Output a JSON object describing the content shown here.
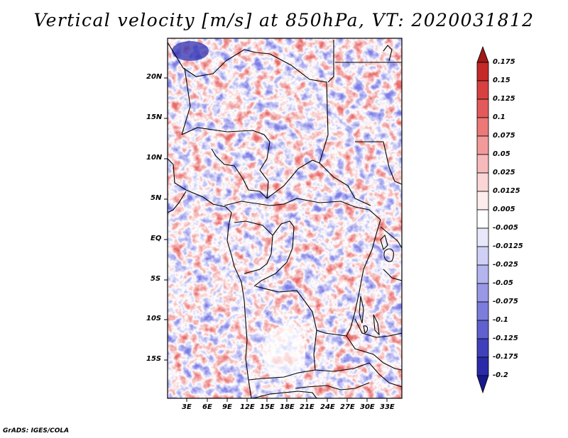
{
  "title": "Vertical velocity [m/s] at 850hPa, VT: 2020031812",
  "footer": "GrADS: IGES/COLA",
  "map": {
    "region": "Central and Southern Africa",
    "lat_labels": [
      "20N",
      "15N",
      "10N",
      "5N",
      "EQ",
      "5S",
      "10S",
      "15S"
    ],
    "lon_labels": [
      "3E",
      "6E",
      "9E",
      "12E",
      "15E",
      "18E",
      "21E",
      "24E",
      "27E",
      "30E",
      "33E"
    ]
  },
  "colorbar": {
    "labels": [
      "0.175",
      "0.15",
      "0.125",
      "0.1",
      "0.075",
      "0.05",
      "0.025",
      "0.0125",
      "0.005",
      "-0.005",
      "-0.0125",
      "-0.025",
      "-0.05",
      "-0.075",
      "-0.1",
      "-0.125",
      "-0.175",
      "-0.2"
    ],
    "colors": [
      "#a01818",
      "#c42828",
      "#d84040",
      "#e45a5a",
      "#ec7878",
      "#f29a9a",
      "#f7baba",
      "#fbd6d6",
      "#fdecec",
      "#ffffff",
      "#e8e8fb",
      "#d0d0f6",
      "#b4b4ef",
      "#9898e6",
      "#7c7cdc",
      "#6060cf",
      "#4040bc",
      "#2a2aa8",
      "#18188c"
    ]
  }
}
